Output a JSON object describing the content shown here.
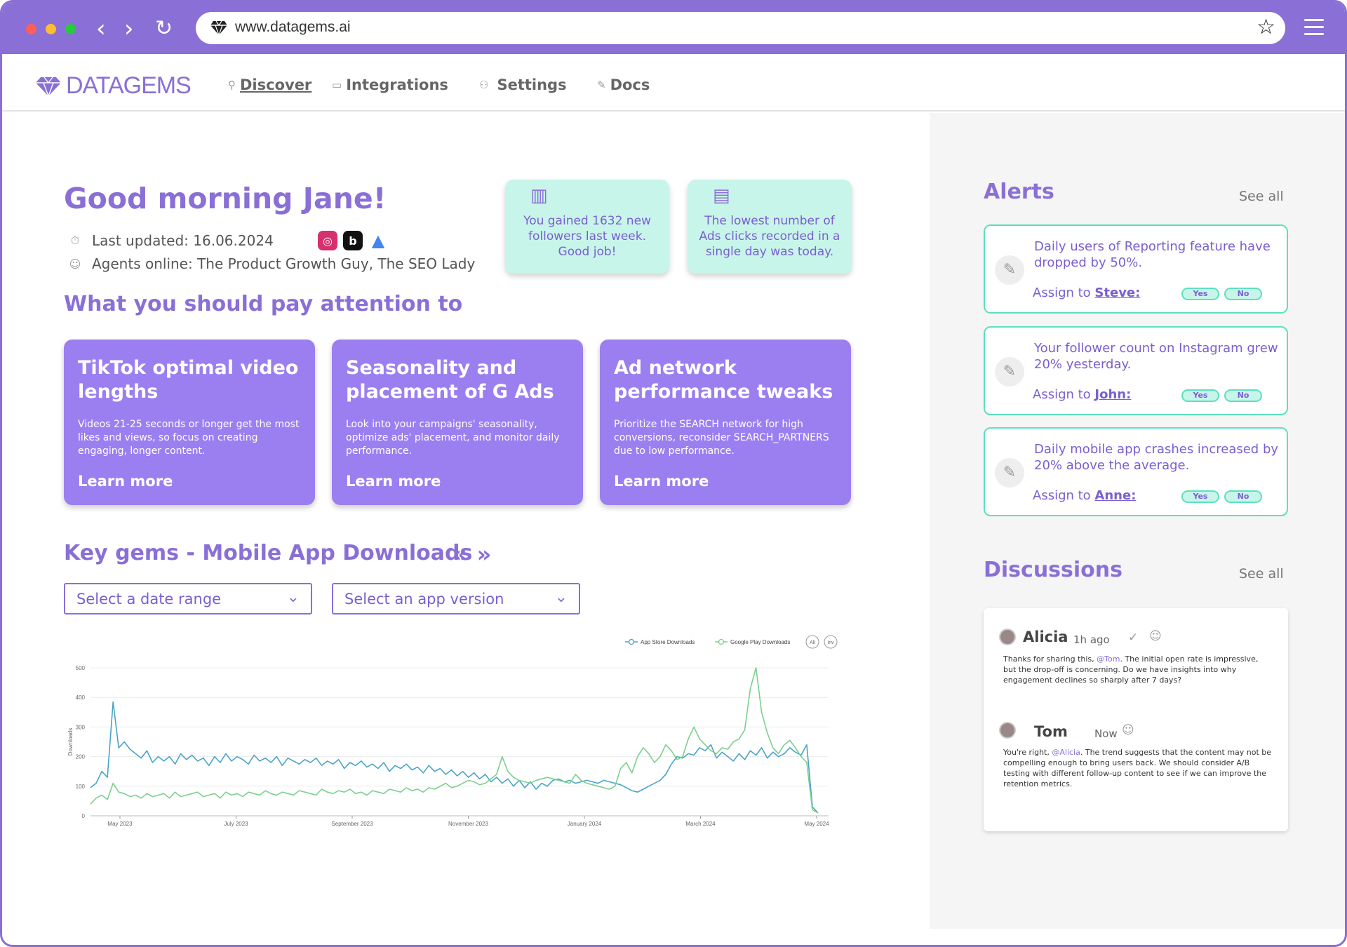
{
  "browser": {
    "url": "www.datagems.ai",
    "dots": [
      "#ff5f57",
      "#febc2e",
      "#28c840"
    ],
    "nav_back": "‹",
    "nav_forward": "›",
    "reload": "↻",
    "star": "☆"
  },
  "nav": {
    "logo": "DATAGEMS",
    "items": [
      {
        "label": "Discover",
        "icon": "search-icon",
        "glyph": "⚲"
      },
      {
        "label": "Integrations",
        "icon": "monitor-icon",
        "glyph": "▭"
      },
      {
        "label": "Settings",
        "icon": "user-icon",
        "glyph": "⚇"
      },
      {
        "label": "Docs",
        "icon": "pen-icon",
        "glyph": "✎"
      }
    ]
  },
  "greeting": {
    "title": "Good morning Jane!",
    "last_updated": "Last updated: 16.06.2024",
    "agents": "Agents online: The Product Growth Guy, The SEO Lady",
    "clock_glyph": "⏱",
    "agents_glyph": "☺"
  },
  "social": [
    {
      "name": "instagram-icon",
      "glyph": "◎",
      "color": "#d6306e"
    },
    {
      "name": "b-icon",
      "glyph": "b",
      "color": "#111111"
    },
    {
      "name": "google-ads-icon",
      "glyph": "▲",
      "color": "#4285f4"
    }
  ],
  "stats": [
    {
      "text": "You gained  1632 new followers last week. Good job!",
      "glyph": "▥"
    },
    {
      "text": "The lowest number of Ads clicks recorded in a single day was today.",
      "glyph": "▤"
    }
  ],
  "attention": {
    "heading": "What you should pay attention to",
    "cards": [
      {
        "title": "TikTok optimal video lengths",
        "body": "Videos 21-25 seconds or longer get the most likes and views, so focus on creating engaging, longer content.",
        "link": "Learn more"
      },
      {
        "title": "Seasonality and placement of G Ads",
        "body": "Look into your campaigns' seasonality, optimize ads' placement, and monitor daily performance.",
        "link": "Learn more"
      },
      {
        "title": "Ad network performance tweaks",
        "body": "Prioritize the SEARCH network for high conversions, reconsider SEARCH_PARTNERS due to low performance.",
        "link": "Learn more"
      }
    ]
  },
  "key_gems": {
    "heading": "Key gems - Mobile App Downloads",
    "prev": "«",
    "next": "»",
    "date_select": "Select a date range",
    "version_select": "Select an app version",
    "chev": "⌄"
  },
  "colors": {
    "accent": "#8a6fd6",
    "card": "#9b7ff0",
    "mint": "#c8f5ea",
    "teal_border": "#5ee0bd",
    "app_store": "#4aa3c8",
    "google_play": "#7ccf8e"
  },
  "chart_data": {
    "type": "line",
    "xlabel": "",
    "ylabel": "Downloads",
    "ylim": [
      0,
      500
    ],
    "yticks": [
      0,
      100,
      200,
      300,
      400,
      500
    ],
    "x_tick_labels": [
      "May 2023",
      "July 2023",
      "September 2023",
      "November 2023",
      "January 2024",
      "March 2024",
      "May 2024"
    ],
    "legend": [
      "App Store Downloads",
      "Google Play Downloads"
    ],
    "legend_extra": [
      "All",
      "Inv"
    ],
    "grid": true,
    "series": [
      {
        "name": "App Store Downloads",
        "color": "#4aa3c8",
        "values": [
          95,
          110,
          150,
          130,
          385,
          230,
          250,
          225,
          210,
          195,
          220,
          180,
          200,
          185,
          200,
          175,
          210,
          190,
          205,
          185,
          195,
          170,
          200,
          180,
          210,
          185,
          200,
          190,
          175,
          205,
          185,
          195,
          180,
          200,
          170,
          195,
          185,
          175,
          190,
          180,
          195,
          170,
          185,
          175,
          190,
          160,
          180,
          170,
          185,
          165,
          175,
          160,
          180,
          150,
          170,
          160,
          175,
          155,
          165,
          145,
          170,
          150,
          160,
          140,
          155,
          135,
          150,
          130,
          145,
          125,
          140,
          115,
          130,
          110,
          125,
          100,
          120,
          95,
          115,
          90,
          110,
          100,
          120,
          125,
          115,
          120,
          110,
          115,
          120,
          115,
          110,
          120,
          115,
          110,
          105,
          95,
          85,
          80,
          90,
          100,
          110,
          120,
          140,
          175,
          200,
          195,
          210,
          205,
          230,
          220,
          240,
          195,
          215,
          200,
          185,
          210,
          190,
          220,
          205,
          230,
          195,
          215,
          200,
          210,
          230,
          215,
          205,
          240,
          30,
          10
        ]
      },
      {
        "name": "Google Play Downloads",
        "color": "#7ccf8e",
        "values": [
          40,
          60,
          70,
          55,
          110,
          80,
          75,
          65,
          70,
          60,
          75,
          65,
          70,
          75,
          60,
          80,
          65,
          70,
          75,
          80,
          65,
          70,
          75,
          60,
          80,
          70,
          75,
          65,
          80,
          75,
          70,
          85,
          75,
          70,
          80,
          75,
          70,
          85,
          80,
          75,
          70,
          90,
          80,
          75,
          85,
          80,
          90,
          75,
          80,
          70,
          85,
          80,
          75,
          90,
          85,
          80,
          95,
          85,
          90,
          80,
          95,
          90,
          100,
          110,
          95,
          100,
          110,
          120,
          115,
          105,
          110,
          125,
          140,
          200,
          150,
          130,
          120,
          115,
          110,
          120,
          125,
          130,
          125,
          120,
          115,
          110,
          140,
          120,
          110,
          105,
          100,
          95,
          90,
          100,
          160,
          180,
          145,
          200,
          230,
          210,
          180,
          200,
          240,
          220,
          190,
          200,
          260,
          300,
          260,
          240,
          220,
          210,
          230,
          225,
          250,
          260,
          290,
          430,
          500,
          350,
          280,
          230,
          210,
          240,
          255,
          230,
          200,
          180,
          20,
          10
        ]
      }
    ]
  },
  "alerts": {
    "heading": "Alerts",
    "see_all": "See all",
    "items": [
      {
        "text": "Daily users of Reporting feature have dropped by 50%.",
        "assign_prefix": "Assign to ",
        "assignee": "Steve:",
        "yes": "Yes",
        "no": "No"
      },
      {
        "text": "Your follower count on Instagram grew 20% yesterday.",
        "assign_prefix": "Assign to ",
        "assignee": "John:",
        "yes": "Yes",
        "no": "No"
      },
      {
        "text": "Daily mobile app crashes increased by 20% above the average.",
        "assign_prefix": "Assign to ",
        "assignee": "Anne:",
        "yes": "Yes",
        "no": "No"
      }
    ]
  },
  "discussions": {
    "heading": "Discussions",
    "see_all": "See all",
    "items": [
      {
        "name": "Alicia",
        "time": "1h ago",
        "pre": "Thanks for sharing this, ",
        "mention": "@Tom",
        "post": ". The initial open rate is impressive, but the drop-off is concerning. Do we have insights into why engagement declines so sharply after 7 days?"
      },
      {
        "name": "Tom",
        "time": "Now",
        "pre": "You're right, ",
        "mention": "@Alicia",
        "post": ". The trend suggests that the content may not be compelling enough to bring users back. We should consider A/B testing with different follow-up content to see if we can improve the retention metrics."
      }
    ]
  }
}
